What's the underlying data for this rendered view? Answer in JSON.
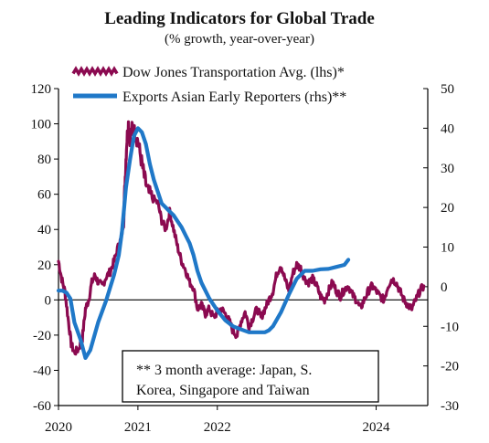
{
  "chart_data": {
    "type": "line",
    "title": "Leading Indicators for Global Trade",
    "subtitle": "(% growth, year-over-year)",
    "note": "** 3 month average: Japan, S. Korea, Singapore and Taiwan",
    "note_lines": [
      "** 3 month average:  Japan, S.",
      "Korea, Singapore and Taiwan"
    ],
    "x_range": [
      2020.0,
      2024.65
    ],
    "x_ticks": [
      2020,
      2021,
      2022,
      2024
    ],
    "y_left": {
      "range": [
        -60,
        120
      ],
      "ticks": [
        -60,
        -40,
        -20,
        0,
        20,
        40,
        60,
        80,
        100,
        120
      ]
    },
    "y_right": {
      "range": [
        -30,
        50
      ],
      "ticks": [
        -30,
        -20,
        -10,
        0,
        10,
        20,
        30,
        40,
        50
      ]
    },
    "grid": false,
    "legend_position": "top-left",
    "series": [
      {
        "name": "Dow Jones Transportation Avg. (lhs)*",
        "axis": "left",
        "color": "#8b0a50",
        "style": "noisy",
        "points": [
          [
            2020.0,
            22
          ],
          [
            2020.04,
            12
          ],
          [
            2020.08,
            5
          ],
          [
            2020.12,
            -10
          ],
          [
            2020.16,
            -25
          ],
          [
            2020.2,
            -30
          ],
          [
            2020.25,
            -28
          ],
          [
            2020.3,
            -22
          ],
          [
            2020.34,
            -5
          ],
          [
            2020.38,
            0
          ],
          [
            2020.42,
            10
          ],
          [
            2020.46,
            14
          ],
          [
            2020.5,
            10
          ],
          [
            2020.55,
            8
          ],
          [
            2020.6,
            13
          ],
          [
            2020.65,
            16
          ],
          [
            2020.7,
            22
          ],
          [
            2020.75,
            30
          ],
          [
            2020.79,
            35
          ],
          [
            2020.82,
            45
          ],
          [
            2020.84,
            70
          ],
          [
            2020.86,
            90
          ],
          [
            2020.88,
            100
          ],
          [
            2020.9,
            92
          ],
          [
            2020.93,
            98
          ],
          [
            2020.96,
            95
          ],
          [
            2021.0,
            90
          ],
          [
            2021.04,
            80
          ],
          [
            2021.08,
            70
          ],
          [
            2021.12,
            62
          ],
          [
            2021.18,
            58
          ],
          [
            2021.25,
            55
          ],
          [
            2021.3,
            45
          ],
          [
            2021.35,
            40
          ],
          [
            2021.4,
            50
          ],
          [
            2021.45,
            40
          ],
          [
            2021.5,
            30
          ],
          [
            2021.55,
            22
          ],
          [
            2021.6,
            17
          ],
          [
            2021.65,
            10
          ],
          [
            2021.7,
            7
          ],
          [
            2021.75,
            -5
          ],
          [
            2021.8,
            -3
          ],
          [
            2021.85,
            -8
          ],
          [
            2021.9,
            -5
          ],
          [
            2021.95,
            -10
          ],
          [
            2022.0,
            -7
          ],
          [
            2022.05,
            -5
          ],
          [
            2022.1,
            -8
          ],
          [
            2022.15,
            -12
          ],
          [
            2022.2,
            -18
          ],
          [
            2022.25,
            -20
          ],
          [
            2022.3,
            -12
          ],
          [
            2022.35,
            -7
          ],
          [
            2022.4,
            -15
          ],
          [
            2022.45,
            -10
          ],
          [
            2022.5,
            -5
          ],
          [
            2022.55,
            -10
          ],
          [
            2022.6,
            -5
          ],
          [
            2022.65,
            0
          ],
          [
            2022.7,
            5
          ],
          [
            2022.75,
            15
          ],
          [
            2022.8,
            20
          ],
          [
            2022.85,
            12
          ],
          [
            2022.9,
            5
          ],
          [
            2022.95,
            15
          ],
          [
            2023.0,
            20
          ],
          [
            2023.05,
            18
          ],
          [
            2023.1,
            12
          ],
          [
            2023.15,
            10
          ],
          [
            2023.2,
            12
          ],
          [
            2023.25,
            8
          ],
          [
            2023.3,
            2
          ],
          [
            2023.35,
            0
          ],
          [
            2023.4,
            5
          ],
          [
            2023.45,
            10
          ],
          [
            2023.5,
            5
          ],
          [
            2023.55,
            2
          ],
          [
            2023.6,
            6
          ],
          [
            2023.65,
            8
          ],
          [
            2023.7,
            3
          ],
          [
            2023.75,
            0
          ],
          [
            2023.8,
            -5
          ],
          [
            2023.85,
            0
          ],
          [
            2023.9,
            5
          ],
          [
            2023.95,
            8
          ],
          [
            2024.0,
            5
          ],
          [
            2024.05,
            2
          ],
          [
            2024.1,
            0
          ],
          [
            2024.15,
            8
          ],
          [
            2024.2,
            12
          ],
          [
            2024.25,
            10
          ],
          [
            2024.3,
            5
          ],
          [
            2024.35,
            0
          ],
          [
            2024.4,
            -3
          ],
          [
            2024.45,
            -5
          ],
          [
            2024.5,
            0
          ],
          [
            2024.55,
            5
          ],
          [
            2024.6,
            8
          ]
        ]
      },
      {
        "name": "Exports Asian Early Reporters (rhs)**",
        "axis": "right",
        "color": "#1f78c8",
        "style": "smooth",
        "points": [
          [
            2020.0,
            -1
          ],
          [
            2020.05,
            -1
          ],
          [
            2020.1,
            -1.5
          ],
          [
            2020.15,
            -3
          ],
          [
            2020.2,
            -9
          ],
          [
            2020.28,
            -13.5
          ],
          [
            2020.34,
            -18
          ],
          [
            2020.4,
            -16
          ],
          [
            2020.5,
            -9
          ],
          [
            2020.6,
            -3.5
          ],
          [
            2020.7,
            3
          ],
          [
            2020.76,
            8
          ],
          [
            2020.8,
            14
          ],
          [
            2020.85,
            25
          ],
          [
            2020.9,
            32
          ],
          [
            2020.95,
            38
          ],
          [
            2021.0,
            40
          ],
          [
            2021.05,
            39
          ],
          [
            2021.1,
            36
          ],
          [
            2021.15,
            31
          ],
          [
            2021.2,
            27
          ],
          [
            2021.25,
            24
          ],
          [
            2021.3,
            21
          ],
          [
            2021.35,
            20
          ],
          [
            2021.4,
            19
          ],
          [
            2021.45,
            18
          ],
          [
            2021.5,
            16.5
          ],
          [
            2021.55,
            15
          ],
          [
            2021.6,
            13
          ],
          [
            2021.65,
            11
          ],
          [
            2021.7,
            8
          ],
          [
            2021.75,
            4
          ],
          [
            2021.8,
            1
          ],
          [
            2021.9,
            -3
          ],
          [
            2022.0,
            -6
          ],
          [
            2022.1,
            -8.5
          ],
          [
            2022.2,
            -10
          ],
          [
            2022.3,
            -10.8
          ],
          [
            2022.4,
            -11.5
          ],
          [
            2022.5,
            -11.5
          ],
          [
            2022.6,
            -11.5
          ],
          [
            2022.65,
            -11
          ],
          [
            2022.7,
            -10
          ],
          [
            2022.8,
            -6.5
          ],
          [
            2022.9,
            -2
          ],
          [
            2023.0,
            2
          ],
          [
            2023.05,
            3
          ],
          [
            2023.1,
            4
          ],
          [
            2023.2,
            4
          ],
          [
            2023.3,
            4.4
          ],
          [
            2023.4,
            4.5
          ],
          [
            2023.5,
            5
          ],
          [
            2023.6,
            5.5
          ],
          [
            2023.65,
            6.8
          ]
        ]
      }
    ]
  }
}
